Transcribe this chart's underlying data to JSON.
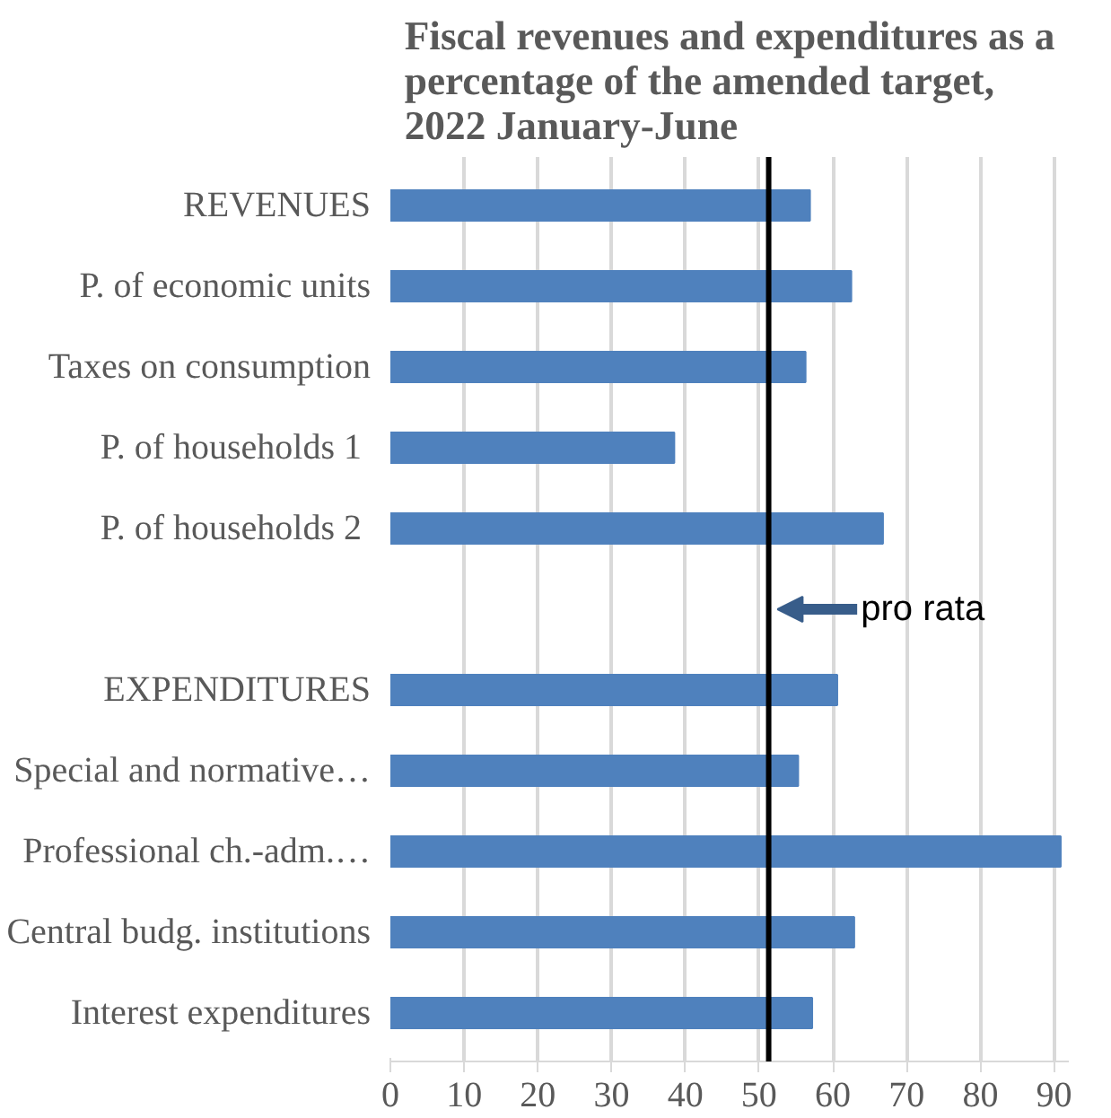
{
  "chart_data": {
    "type": "bar",
    "orientation": "horizontal",
    "title": "Fiscal revenues and expenditures as a\npercentage of the amended target,\n2022 January-June",
    "categories": [
      "REVENUES",
      "P. of economic units",
      "Taxes on consumption",
      "P. of households  1",
      "P. of households  2",
      null,
      "EXPENDITURES",
      "Special and normative…",
      "Professional ch.-adm.…",
      "Central budg. institutions",
      "Interest expenditures"
    ],
    "values": [
      56.9,
      62.5,
      56.3,
      38.5,
      66.8,
      null,
      60.6,
      55.3,
      90.9,
      62.9,
      57.2
    ],
    "color": "#4f81bd",
    "xlim": [
      0,
      92
    ],
    "xticks": [
      0,
      10,
      20,
      30,
      40,
      50,
      60,
      70,
      80,
      90
    ],
    "grid": "x",
    "ref_lines": [
      {
        "axis": "x",
        "value": 51.3,
        "label": "pro rata",
        "color": "#000000"
      }
    ]
  }
}
